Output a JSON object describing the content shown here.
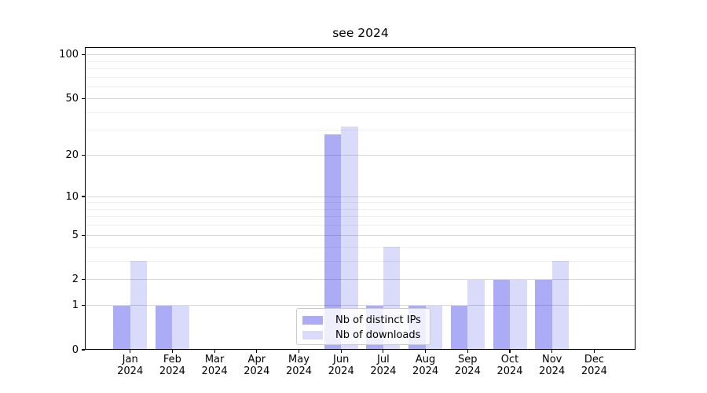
{
  "chart_data": {
    "type": "bar",
    "title": "see 2024",
    "categories": [
      "Jan",
      "Feb",
      "Mar",
      "Apr",
      "May",
      "Jun",
      "Jul",
      "Aug",
      "Sep",
      "Oct",
      "Nov",
      "Dec"
    ],
    "category_year_label": "2024",
    "series": [
      {
        "name": "Nb of distinct IPs",
        "values": [
          1,
          1,
          0,
          0,
          0,
          28,
          1,
          1,
          1,
          2,
          2,
          0
        ],
        "alpha": 0.34
      },
      {
        "name": "Nb of downloads",
        "values": [
          3,
          1,
          0,
          0,
          0,
          32,
          4,
          1,
          2,
          2,
          3,
          0
        ],
        "alpha": 0.15
      }
    ],
    "bar_base_color": "#0a0ae6",
    "yscale": "log1p",
    "ylabel": "",
    "xlabel": "",
    "ylim": [
      0,
      113
    ],
    "yticks": [
      0,
      1,
      2,
      5,
      10,
      20,
      50,
      100
    ],
    "minor_gridlines": [
      3,
      4,
      6,
      7,
      8,
      9,
      30,
      40,
      60,
      70,
      80,
      90
    ],
    "grid": "on",
    "legend_position": "lower center"
  }
}
